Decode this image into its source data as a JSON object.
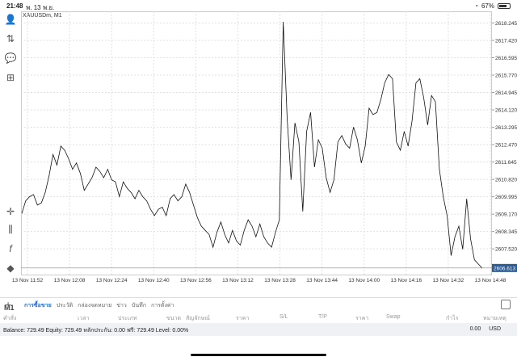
{
  "status_bar": {
    "time": "21:48",
    "date": "พ. 13 พ.ย.",
    "battery": "67%"
  },
  "symbol_label": "XAUUSDm, M1",
  "timeframe": "M1",
  "price_axis": [
    "2618.245",
    "2617.420",
    "2616.595",
    "2615.770",
    "2614.945",
    "2614.120",
    "2613.295",
    "2612.470",
    "2611.645",
    "2610.820",
    "2609.995",
    "2609.170",
    "2608.345",
    "2607.520"
  ],
  "current_price": "2606.613",
  "time_axis": [
    "13 Nov 11:52",
    "13 Nov 12:08",
    "13 Nov 12:24",
    "13 Nov 12:40",
    "13 Nov 12:56",
    "13 Nov 13:12",
    "13 Nov 13:28",
    "13 Nov 13:44",
    "13 Nov 14:00",
    "13 Nov 14:16",
    "13 Nov 14:32",
    "13 Nov 14:48"
  ],
  "tabs": [
    {
      "label": "การซื้อขาย",
      "active": true
    },
    {
      "label": "ประวัติ"
    },
    {
      "label": "กล่องจดหมาย"
    },
    {
      "label": "ข่าว"
    },
    {
      "label": "บันทึก"
    },
    {
      "label": "การตั้งค่า"
    }
  ],
  "table_headers": [
    "คำสั่ง",
    "เวลา",
    "ประเภท",
    "ขนาด",
    "สัญลักษณ์",
    "ราคา",
    "S/L",
    "T/P",
    "ราคา",
    "Swap",
    "กำไร",
    "หมายเหตุ"
  ],
  "balance_text": "Balance: 729.49 Equity: 729.49 หลักประกัน: 0.00 ฟรี: 729.49 Level: 0.00%",
  "profit_value": "0.00",
  "currency": "USD",
  "colors": {
    "accent": "#1e6fd9",
    "line": "#111111",
    "price_tag": "#2b5c96"
  },
  "icons": [
    "trader-icon",
    "order-icon",
    "chat-icon",
    "new-document-icon",
    "crosshair-icon",
    "indicators-icon",
    "function-icon",
    "objects-icon",
    "add-icon",
    "layout-icon"
  ],
  "chart_data": {
    "type": "line",
    "y_ticks": [
      2618.245,
      2617.42,
      2616.595,
      2615.77,
      2614.945,
      2614.12,
      2613.295,
      2612.47,
      2611.645,
      2610.82,
      2609.995,
      2609.17,
      2608.345,
      2607.52
    ],
    "x_ticks": [
      "13 Nov 11:52",
      "13 Nov 12:08",
      "13 Nov 12:24",
      "13 Nov 12:40",
      "13 Nov 12:56",
      "13 Nov 13:12",
      "13 Nov 13:28",
      "13 Nov 13:44",
      "13 Nov 14:00",
      "13 Nov 14:16",
      "13 Nov 14:32",
      "13 Nov 14:48"
    ],
    "values": [
      2609.2,
      2609.8,
      2610.0,
      2610.1,
      2609.6,
      2609.7,
      2610.2,
      2611.0,
      2612.0,
      2611.5,
      2612.4,
      2612.2,
      2611.8,
      2611.3,
      2611.6,
      2611.1,
      2610.3,
      2610.6,
      2610.9,
      2611.4,
      2611.2,
      2610.9,
      2611.3,
      2610.8,
      2610.7,
      2610.0,
      2610.7,
      2610.4,
      2610.2,
      2609.9,
      2610.3,
      2610.0,
      2609.8,
      2609.4,
      2609.1,
      2609.4,
      2609.5,
      2609.1,
      2609.9,
      2610.1,
      2609.8,
      2610.0,
      2610.6,
      2610.2,
      2609.6,
      2609.0,
      2608.6,
      2608.4,
      2608.2,
      2607.6,
      2608.3,
      2608.8,
      2608.2,
      2607.8,
      2608.4,
      2607.9,
      2607.7,
      2608.4,
      2608.9,
      2608.6,
      2608.1,
      2608.7,
      2608.1,
      2607.8,
      2607.6,
      2608.3,
      2608.9,
      2618.3,
      2613.7,
      2610.8,
      2613.5,
      2612.6,
      2609.3,
      2613.1,
      2614.0,
      2611.4,
      2612.7,
      2612.3,
      2610.9,
      2610.2,
      2610.8,
      2612.6,
      2612.9,
      2612.5,
      2612.3,
      2613.3,
      2612.7,
      2611.6,
      2612.4,
      2614.2,
      2613.9,
      2614.0,
      2614.6,
      2615.4,
      2615.8,
      2615.6,
      2612.6,
      2612.2,
      2613.1,
      2612.4,
      2613.6,
      2615.4,
      2615.6,
      2614.7,
      2613.4,
      2614.8,
      2614.5,
      2611.3,
      2610.0,
      2609.1,
      2607.2,
      2608.1,
      2608.6,
      2607.5,
      2609.9,
      2608.0,
      2607.0,
      2606.8,
      2606.6
    ],
    "ylim": [
      2606.3,
      2618.8
    ],
    "current_price": 2606.613,
    "grid": true
  }
}
